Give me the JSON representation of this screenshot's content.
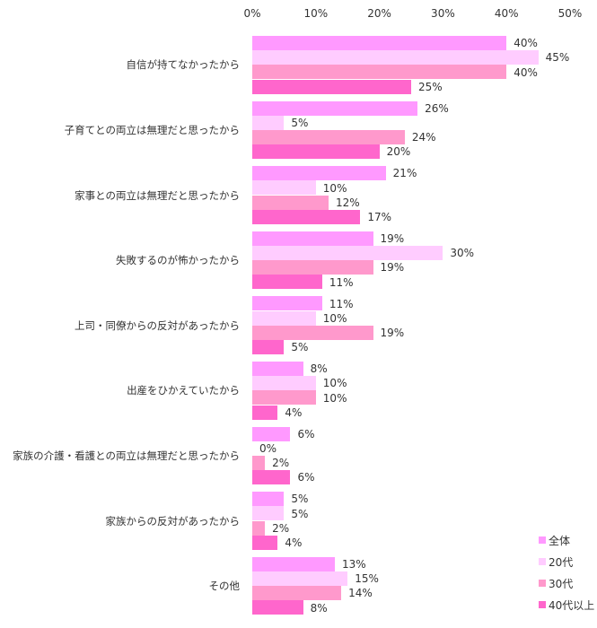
{
  "chart_data": {
    "type": "bar",
    "orientation": "horizontal",
    "title": "",
    "xlabel": "",
    "ylabel": "",
    "xlim": [
      0,
      50
    ],
    "x_ticks": [
      "0%",
      "10%",
      "20%",
      "30%",
      "40%",
      "50%"
    ],
    "grid": false,
    "legend_position": "bottom-right",
    "categories": [
      "自信が持てなかったから",
      "子育てとの両立は無理だと思ったから",
      "家事との両立は無理だと思ったから",
      "失敗するのが怖かったから",
      "上司・同僚からの反対があったから",
      "出産をひかえていたから",
      "家族の介護・看護との両立は無理だと思ったから",
      "家族からの反対があったから",
      "その他"
    ],
    "series": [
      {
        "name": "全体",
        "color": "#FF99FF",
        "values": [
          40,
          26,
          21,
          19,
          11,
          8,
          6,
          5,
          13
        ]
      },
      {
        "name": "20代",
        "color": "#FFCCFF",
        "values": [
          45,
          5,
          10,
          30,
          10,
          10,
          0,
          5,
          15
        ]
      },
      {
        "name": "30代",
        "color": "#FF99CC",
        "values": [
          40,
          24,
          12,
          19,
          19,
          10,
          2,
          2,
          14
        ]
      },
      {
        "name": "40代以上",
        "color": "#FF66CC",
        "values": [
          25,
          20,
          17,
          11,
          5,
          4,
          6,
          4,
          8
        ]
      }
    ],
    "value_labels": [
      [
        "40%",
        "45%",
        "40%",
        "25%"
      ],
      [
        "26%",
        "5%",
        "24%",
        "20%"
      ],
      [
        "21%",
        "10%",
        "12%",
        "17%"
      ],
      [
        "19%",
        "30%",
        "19%",
        "11%"
      ],
      [
        "11%",
        "10%",
        "19%",
        "5%"
      ],
      [
        "8%",
        "10%",
        "10%",
        "4%"
      ],
      [
        "6%",
        "0%",
        "2%",
        "6%"
      ],
      [
        "5%",
        "5%",
        "2%",
        "4%"
      ],
      [
        "13%",
        "15%",
        "14%",
        "8%"
      ]
    ]
  }
}
